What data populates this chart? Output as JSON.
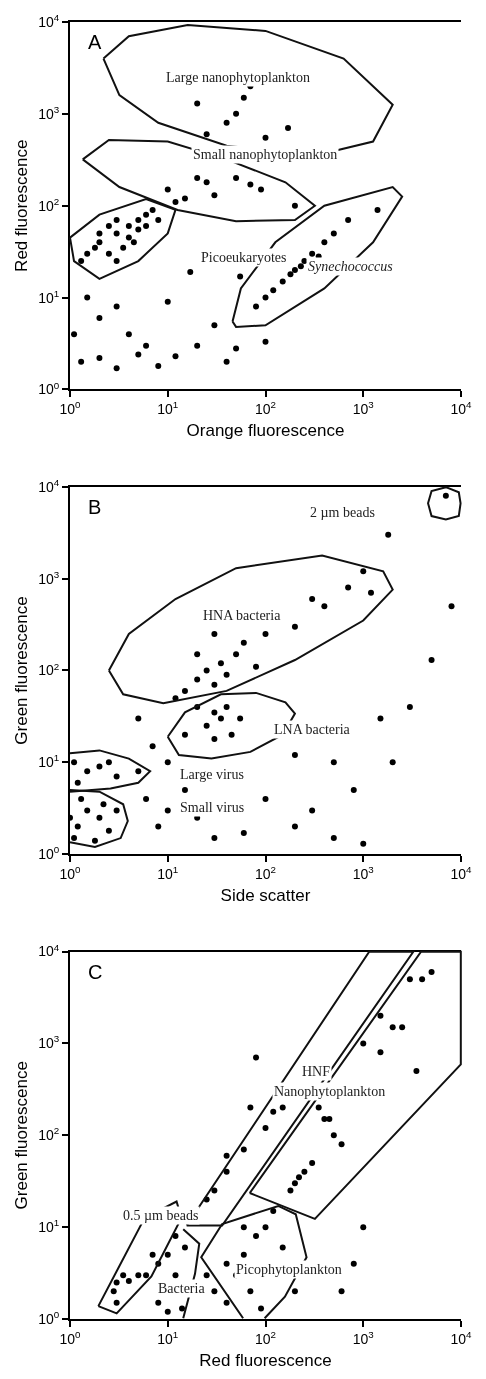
{
  "chart_data": [
    {
      "type": "scatter",
      "title": "A",
      "xlabel": "Orange fluorescence",
      "ylabel": "Red fluorescence",
      "log": "xy",
      "marker": "circle",
      "xlim": [
        1,
        10000
      ],
      "ylim": [
        1,
        10000
      ],
      "xticks": [
        {
          "value": 1,
          "label": "10$^{0}$"
        },
        {
          "value": 10,
          "label": "10$^{1}$"
        },
        {
          "value": 100,
          "label": "10$^{2}$"
        },
        {
          "value": 1000,
          "label": "10$^{3}$"
        },
        {
          "value": 10000,
          "label": "10$^{4}$"
        }
      ],
      "yticks": [
        {
          "value": 1,
          "label": "10$^{0}$"
        },
        {
          "value": 10,
          "label": "10$^{1}$"
        },
        {
          "value": 100,
          "label": "10$^{2}$"
        },
        {
          "value": 1000,
          "label": "10$^{3}$"
        },
        {
          "value": 10000,
          "label": "10$^{4}$"
        }
      ],
      "series": [
        {
          "color": "#000000",
          "x": [
            2,
            3,
            4,
            5,
            2.5,
            3.5,
            1.5,
            6,
            4,
            3,
            2,
            5,
            7,
            1.3,
            2.5,
            4.5,
            3,
            6,
            1.8,
            8,
            10,
            15,
            20,
            30,
            50,
            25,
            70,
            90,
            200,
            12,
            50,
            60,
            70,
            40,
            20,
            100,
            170,
            25,
            120,
            150,
            200,
            250,
            300,
            400,
            500,
            700,
            1400,
            100,
            180,
            230,
            80,
            350,
            1.3,
            2,
            3,
            5,
            8,
            12,
            20,
            40,
            50,
            100,
            1.5,
            2,
            3,
            4,
            10,
            30,
            1.1,
            6,
            17,
            55
          ],
          "values": [
            40,
            50,
            60,
            70,
            30,
            35,
            30,
            80,
            45,
            25,
            50,
            55,
            90,
            25,
            60,
            40,
            70,
            60,
            35,
            70,
            150,
            120,
            200,
            130,
            200,
            180,
            170,
            150,
            100,
            110,
            1000,
            1500,
            2000,
            800,
            1300,
            550,
            700,
            600,
            12,
            15,
            20,
            25,
            30,
            40,
            50,
            70,
            90,
            10,
            18,
            22,
            8,
            28,
            2,
            2.2,
            1.7,
            2.4,
            1.8,
            2.3,
            3,
            2,
            2.8,
            3.3,
            10,
            6,
            8,
            4,
            9,
            5,
            4,
            3,
            19,
            17
          ]
        }
      ],
      "annotations": [
        "Large nanophytoplankton",
        "Small nanophytoplankton",
        "Picoeukaryotes",
        "Synechococcus"
      ]
    },
    {
      "type": "scatter",
      "title": "B",
      "xlabel": "Side scatter",
      "ylabel": "Green fluorescence",
      "log": "xy",
      "marker": "circle",
      "xlim": [
        1,
        10000
      ],
      "ylim": [
        1,
        10000
      ],
      "xticks": [
        {
          "value": 1,
          "label": "10$^{0}$"
        },
        {
          "value": 10,
          "label": "10$^{1}$"
        },
        {
          "value": 100,
          "label": "10$^{2}$"
        },
        {
          "value": 1000,
          "label": "10$^{3}$"
        },
        {
          "value": 10000,
          "label": "10$^{4}$"
        }
      ],
      "yticks": [
        {
          "value": 1,
          "label": "10$^{0}$"
        },
        {
          "value": 10,
          "label": "10$^{1}$"
        },
        {
          "value": 100,
          "label": "10$^{2}$"
        },
        {
          "value": 1000,
          "label": "10$^{3}$"
        },
        {
          "value": 10000,
          "label": "10$^{4}$"
        }
      ],
      "series": [
        {
          "color": "#000000",
          "x": [
            1.2,
            1.5,
            2,
            1.1,
            2.5,
            3,
            1.3,
            1.8,
            1,
            2.2,
            1.5,
            2,
            3,
            1.2,
            5,
            2.5,
            1.1,
            6,
            10,
            15,
            8,
            20,
            30,
            60,
            100,
            200,
            300,
            500,
            7,
            10,
            15,
            5,
            20,
            25,
            30,
            35,
            40,
            15,
            50,
            20,
            60,
            30,
            12,
            80,
            30,
            35,
            40,
            25,
            45,
            20,
            55,
            30,
            200,
            400,
            700,
            1000,
            1200,
            100,
            300,
            7000,
            5000,
            8000,
            2000,
            1500,
            800,
            1800,
            200,
            500,
            1000,
            3000
          ],
          "values": [
            2,
            3,
            2.5,
            1.5,
            1.8,
            3,
            4,
            1.4,
            2.5,
            3.5,
            8,
            9,
            7,
            6,
            8,
            10,
            10,
            4,
            3,
            5,
            2,
            2.5,
            1.5,
            1.7,
            4,
            2,
            3,
            1.5,
            15,
            10,
            20,
            30,
            80,
            100,
            70,
            120,
            90,
            60,
            150,
            150,
            200,
            250,
            50,
            110,
            35,
            30,
            40,
            25,
            20,
            40,
            30,
            18,
            300,
            500,
            800,
            1200,
            700,
            250,
            600,
            8000,
            130,
            500,
            10,
            30,
            5,
            3000,
            12,
            10,
            1.3,
            40
          ]
        }
      ],
      "annotations": [
        "2 µm beads",
        "HNA bacteria",
        "LNA bacteria",
        "Large virus",
        "Small virus"
      ]
    },
    {
      "type": "scatter",
      "title": "C",
      "xlabel": "Red fluorescence",
      "ylabel": "Green fluorescence",
      "log": "xy",
      "marker": "circle",
      "xlim": [
        1,
        10000
      ],
      "ylim": [
        1,
        10000
      ],
      "xticks": [
        {
          "value": 1,
          "label": "10$^{0}$"
        },
        {
          "value": 10,
          "label": "10$^{1}$"
        },
        {
          "value": 100,
          "label": "10$^{2}$"
        },
        {
          "value": 1000,
          "label": "10$^{3}$"
        },
        {
          "value": 10000,
          "label": "10$^{4}$"
        }
      ],
      "yticks": [
        {
          "value": 1,
          "label": "10$^{0}$"
        },
        {
          "value": 10,
          "label": "10$^{1}$"
        },
        {
          "value": 100,
          "label": "10$^{2}$"
        },
        {
          "value": 1000,
          "label": "10$^{3}$"
        },
        {
          "value": 10000,
          "label": "10$^{4}$"
        }
      ],
      "series": [
        {
          "color": "#000000",
          "x": [
            3,
            2.8,
            3.5,
            4,
            3,
            5,
            6,
            8,
            10,
            12,
            15,
            8,
            12,
            10,
            14,
            7,
            30,
            40,
            50,
            60,
            80,
            100,
            120,
            40,
            70,
            90,
            25,
            60,
            150,
            200,
            200,
            220,
            180,
            250,
            300,
            400,
            500,
            350,
            450,
            600,
            25,
            30,
            40,
            60,
            100,
            150,
            120,
            1500,
            2500,
            1000,
            1500,
            2000,
            3500,
            4000,
            5000,
            800,
            1000,
            600,
            3000,
            80,
            70,
            40
          ],
          "values": [
            2.5,
            2,
            3,
            2.6,
            1.5,
            3,
            3,
            4,
            5,
            3,
            6,
            1.5,
            8,
            1.2,
            1.3,
            5,
            2,
            1.5,
            3,
            5,
            8,
            10,
            15,
            4,
            2,
            1.3,
            3,
            10,
            6,
            2,
            30,
            35,
            25,
            40,
            50,
            150,
            100,
            200,
            150,
            80,
            20,
            25,
            40,
            70,
            120,
            200,
            180,
            2000,
            1500,
            1000,
            800,
            1500,
            500,
            5000,
            6000,
            4,
            10,
            2,
            5000,
            700,
            200,
            60
          ]
        }
      ],
      "annotations": [
        "HNF",
        "Nanophytoplankton",
        "0.5 µm beads",
        "Bacteria",
        "Picophytoplankton"
      ]
    }
  ]
}
